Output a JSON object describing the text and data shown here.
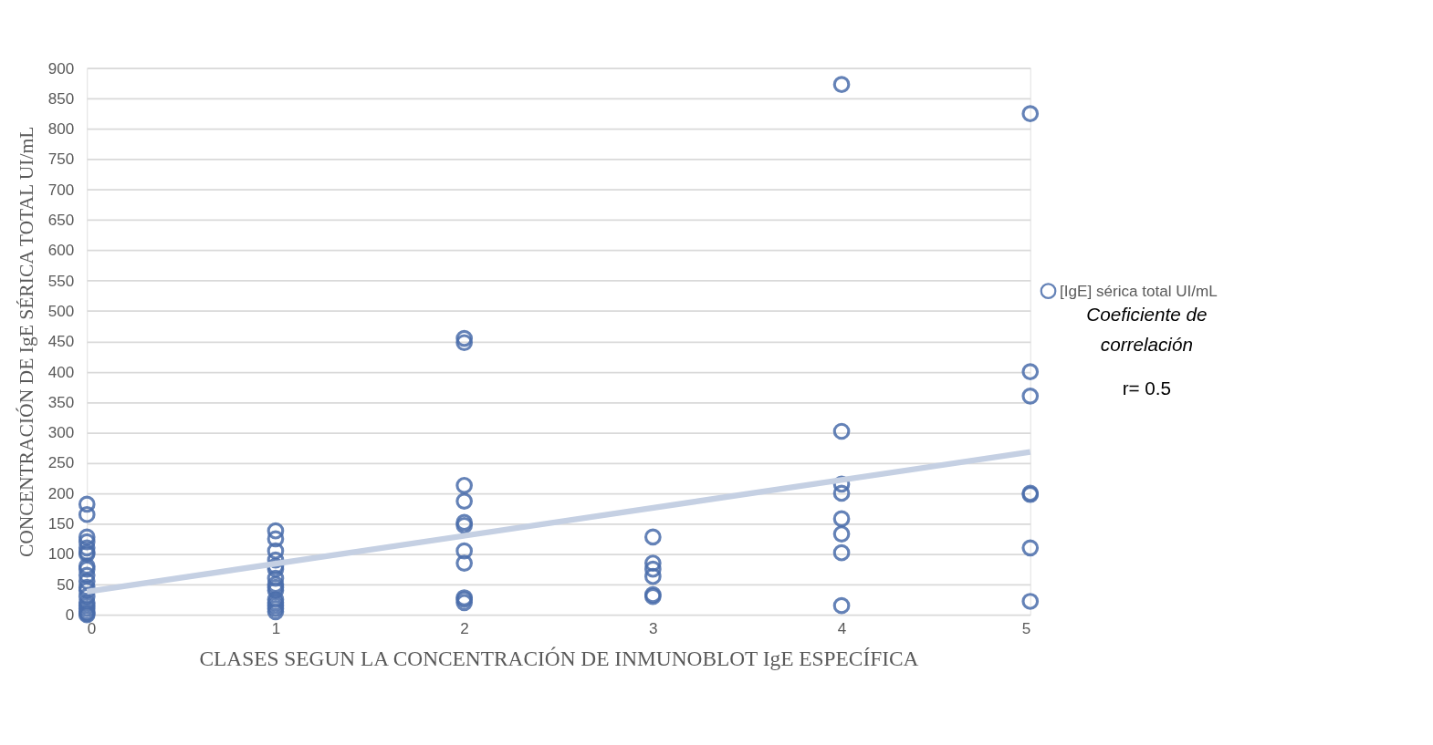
{
  "chart_data": {
    "type": "scatter",
    "xlabel": "CLASES SEGUN LA CONCENTRACIÓN DE INMUNOBLOT IgE ESPECÍFICA",
    "ylabel": "CONCENTRACIÓN DE IgE SÉRICA TOTAL UI/mL",
    "xlim": [
      0,
      5
    ],
    "xticks": [
      0,
      1,
      2,
      3,
      4,
      5
    ],
    "ylim": [
      0,
      900
    ],
    "yticks": [
      0,
      50,
      100,
      150,
      200,
      250,
      300,
      350,
      400,
      450,
      500,
      550,
      600,
      650,
      700,
      750,
      800,
      850,
      900
    ],
    "grid": "y",
    "legend": "right",
    "annotations": [
      "Coeficiente de correlación",
      "r= 0.5"
    ],
    "series": [
      {
        "name": "[IgE] sérica total UI/mL",
        "color": "#4a6dab",
        "marker": "circle",
        "x": [
          0,
          0,
          0,
          0,
          0,
          0,
          0,
          0,
          0,
          0,
          0,
          0,
          0,
          0,
          0,
          0,
          0,
          0,
          0,
          0,
          1,
          1,
          1,
          1,
          1,
          1,
          1,
          1,
          1,
          1,
          1,
          1,
          1,
          1,
          1,
          2,
          2,
          2,
          2,
          2,
          2,
          2,
          2,
          2,
          2,
          2,
          3,
          3,
          3,
          3,
          3,
          3,
          4,
          4,
          4,
          4,
          4,
          4,
          4,
          4,
          5,
          5,
          5,
          5,
          5,
          5,
          5
        ],
        "values": [
          182,
          165,
          128,
          120,
          110,
          103,
          100,
          80,
          75,
          65,
          55,
          45,
          40,
          30,
          20,
          15,
          10,
          5,
          2,
          0,
          138,
          125,
          105,
          90,
          80,
          75,
          60,
          50,
          45,
          40,
          25,
          20,
          15,
          10,
          5,
          455,
          448,
          213,
          187,
          152,
          147,
          105,
          85,
          28,
          25,
          20,
          128,
          85,
          75,
          63,
          33,
          30,
          873,
          302,
          215,
          200,
          158,
          133,
          102,
          15,
          825,
          400,
          360,
          200,
          198,
          110,
          22
        ]
      },
      {
        "color": "#c5d0e3",
        "type": "line",
        "marker": "none",
        "x": [
          0,
          5
        ],
        "values": [
          38,
          268
        ]
      }
    ]
  }
}
